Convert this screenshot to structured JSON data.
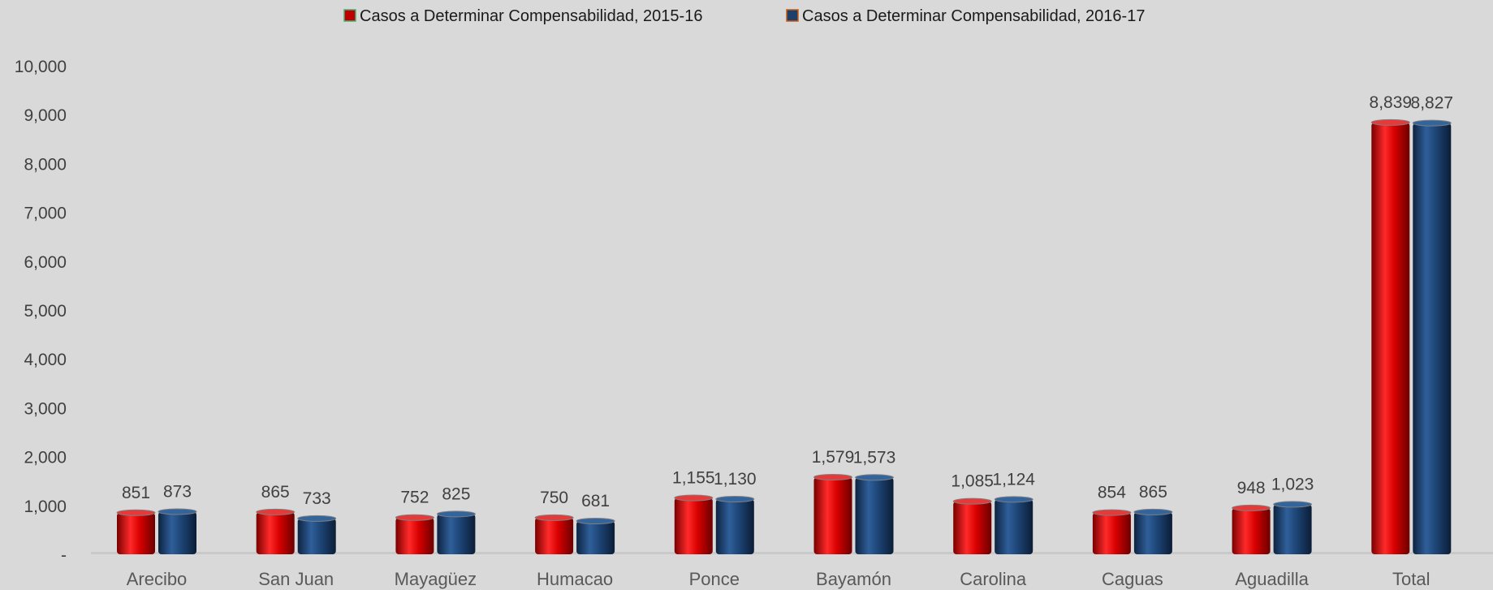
{
  "chart_data": {
    "type": "bar",
    "categories": [
      "Arecibo",
      "San Juan",
      "Mayagüez",
      "Humacao",
      "Ponce",
      "Bayamón",
      "Carolina",
      "Caguas",
      "Aguadilla",
      "Total"
    ],
    "series": [
      {
        "name": "Casos a Determinar Compensabilidad, 2015-16",
        "color": "#c00000",
        "values": [
          851,
          865,
          752,
          750,
          1155,
          1579,
          1085,
          854,
          948,
          8839
        ],
        "labels": [
          "851",
          "865",
          "752",
          "750",
          "1,155",
          "1,579",
          "1,085",
          "854",
          "948",
          "8,839"
        ]
      },
      {
        "name": "Casos a Determinar Compensabilidad, 2016-17",
        "color": "#1f3f6b",
        "values": [
          873,
          733,
          825,
          681,
          1130,
          1573,
          1124,
          865,
          1023,
          8827
        ],
        "labels": [
          "873",
          "733",
          "825",
          "681",
          "1,130",
          "1,573",
          "1,124",
          "865",
          "1,023",
          "8,827"
        ]
      }
    ],
    "yticks": [
      0,
      1000,
      2000,
      3000,
      4000,
      5000,
      6000,
      7000,
      8000,
      9000,
      10000
    ],
    "ytick_labels": [
      "-",
      "1,000",
      "2,000",
      "3,000",
      "4,000",
      "5,000",
      "6,000",
      "7,000",
      "8,000",
      "9,000",
      "10,000"
    ],
    "ylim": [
      0,
      10000
    ],
    "grid": false,
    "legend_position": "top"
  }
}
